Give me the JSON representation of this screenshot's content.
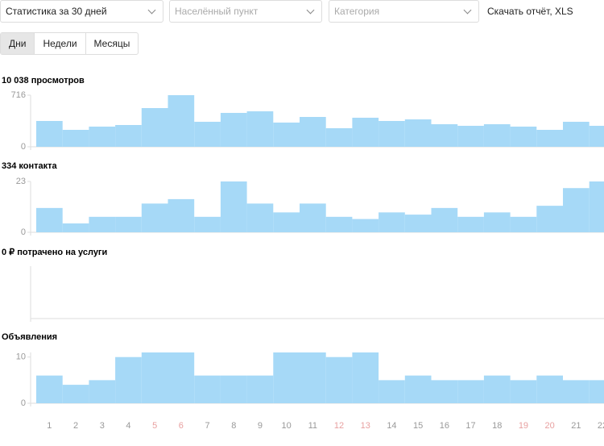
{
  "controls": {
    "period": "Статистика за 30 дней",
    "city": "Населённый пункт",
    "category": "Категория",
    "download": "Скачать отчёт, XLS"
  },
  "tabs": [
    "Дни",
    "Недели",
    "Месяцы"
  ],
  "chart_data": [
    {
      "type": "bar",
      "title": "10 038 просмотров",
      "color": "#a6d9f7",
      "values": [
        358,
        235,
        280,
        302,
        537,
        716,
        347,
        470,
        492,
        336,
        414,
        258,
        403,
        358,
        380,
        313,
        291,
        313,
        280,
        235,
        347,
        291
      ],
      "ylim": [
        0,
        716
      ],
      "yticks": [
        0,
        716
      ]
    },
    {
      "type": "bar",
      "title": "334 контакта",
      "color": "#a6d9f7",
      "values": [
        11,
        4,
        7,
        7,
        13,
        15,
        7,
        23,
        13,
        9,
        13,
        7,
        6,
        9,
        8,
        11,
        7,
        9,
        7,
        12,
        20,
        23
      ],
      "ylim": [
        0,
        23
      ],
      "yticks": [
        0,
        23
      ]
    },
    {
      "type": "bar",
      "title": "0 ₽ потрачено на услуги",
      "color": "#a6d9f7",
      "values": []
    },
    {
      "type": "bar",
      "title": "Объявления",
      "color": "#a6d9f7",
      "categories": [
        "1",
        "2",
        "3",
        "4",
        "5",
        "6",
        "7",
        "8",
        "9",
        "10",
        "11",
        "12",
        "13",
        "14",
        "15",
        "16",
        "17",
        "18",
        "19",
        "20",
        "21",
        "22"
      ],
      "category_colors": [
        "#999",
        "#999",
        "#999",
        "#999",
        "#e8a0a0",
        "#e8a0a0",
        "#999",
        "#999",
        "#999",
        "#999",
        "#999",
        "#e8a0a0",
        "#e8a0a0",
        "#999",
        "#999",
        "#999",
        "#999",
        "#999",
        "#e8a0a0",
        "#e8a0a0",
        "#999",
        "#999"
      ],
      "values": [
        6,
        4,
        5,
        10,
        11,
        11,
        6,
        6,
        6,
        11,
        11,
        10,
        11,
        5,
        6,
        5,
        5,
        6,
        5,
        6,
        5,
        5
      ],
      "ylim": [
        0,
        11
      ],
      "yticks": [
        0,
        10
      ]
    }
  ]
}
